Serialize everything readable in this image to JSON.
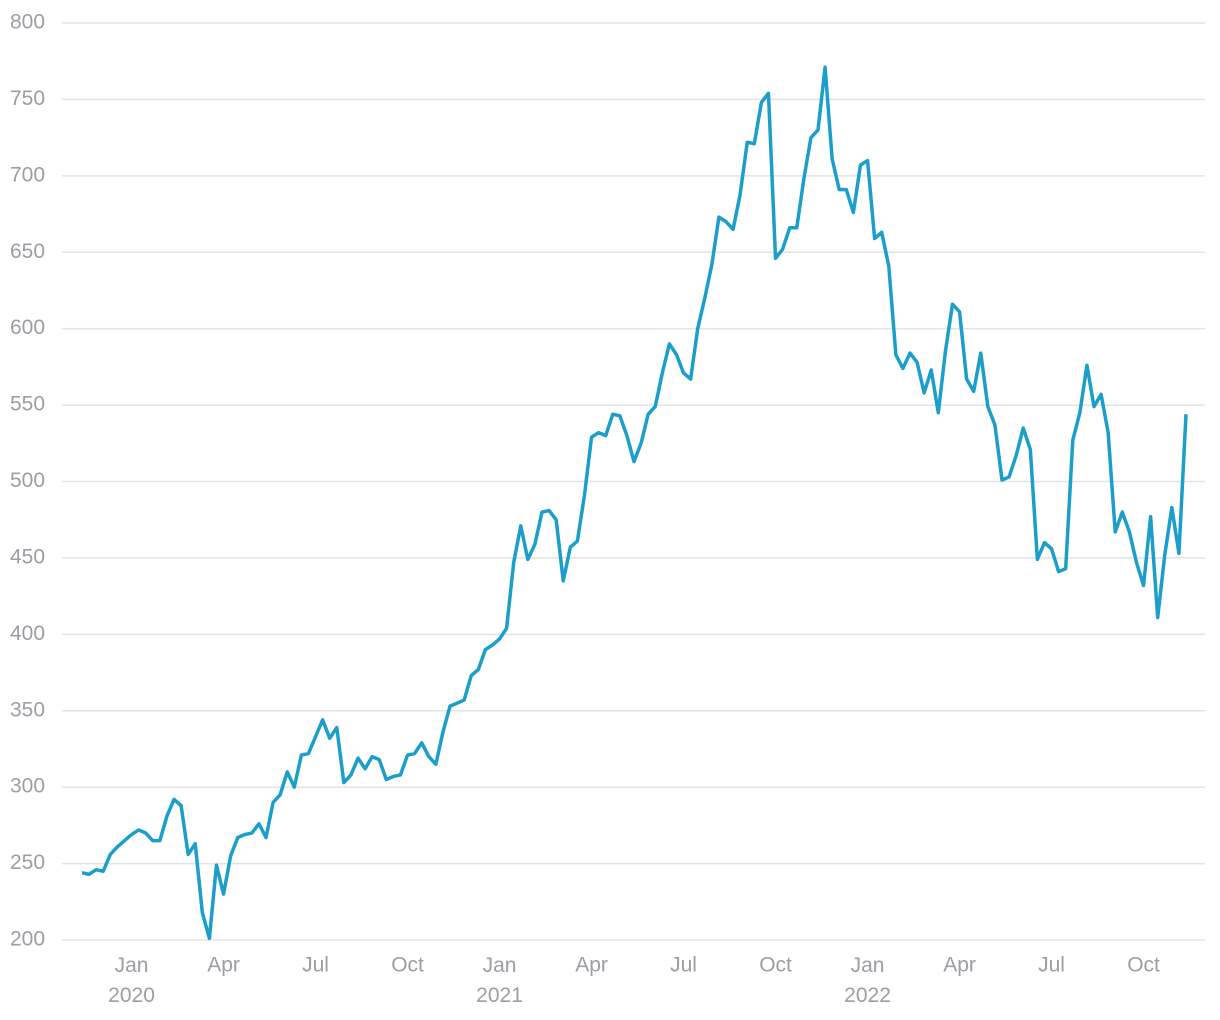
{
  "chart_data": {
    "type": "line",
    "categories": [
      null,
      null,
      null,
      null,
      null,
      null,
      null,
      "Jan 2020",
      null,
      null,
      null,
      null,
      null,
      null,
      null,
      null,
      null,
      null,
      null,
      null,
      "Apr",
      null,
      null,
      null,
      null,
      null,
      null,
      null,
      null,
      null,
      null,
      null,
      null,
      "Jul",
      null,
      null,
      null,
      null,
      null,
      null,
      null,
      null,
      null,
      null,
      null,
      null,
      "Oct",
      null,
      null,
      null,
      null,
      null,
      null,
      null,
      null,
      null,
      null,
      null,
      null,
      "Jan 2021",
      null,
      null,
      null,
      null,
      null,
      null,
      null,
      null,
      null,
      null,
      null,
      null,
      "Apr",
      null,
      null,
      null,
      null,
      null,
      null,
      null,
      null,
      null,
      null,
      null,
      null,
      "Jul",
      null,
      null,
      null,
      null,
      null,
      null,
      null,
      null,
      null,
      null,
      null,
      null,
      "Oct",
      null,
      null,
      null,
      null,
      null,
      null,
      null,
      null,
      null,
      null,
      null,
      null,
      "Jan 2022",
      null,
      null,
      null,
      null,
      null,
      null,
      null,
      null,
      null,
      null,
      null,
      null,
      "Apr",
      null,
      null,
      null,
      null,
      null,
      null,
      null,
      null,
      null,
      null,
      null,
      null,
      "Jul",
      null,
      null,
      null,
      null,
      null,
      null,
      null,
      null,
      null,
      null,
      null,
      null,
      "Oct",
      null,
      null,
      null,
      null,
      null,
      null
    ],
    "values": [
      244,
      243,
      246,
      245,
      256,
      261,
      265,
      269,
      272,
      270,
      265,
      265,
      281,
      292,
      288,
      256,
      263,
      218,
      201,
      249,
      230,
      255,
      267,
      269,
      270,
      276,
      267,
      290,
      295,
      310,
      300,
      321,
      322,
      333,
      344,
      332,
      339,
      303,
      308,
      319,
      312,
      320,
      318,
      305,
      307,
      308,
      321,
      322,
      329,
      320,
      315,
      336,
      353,
      355,
      357,
      373,
      377,
      390,
      393,
      397,
      404,
      447,
      471,
      449,
      459,
      480,
      481,
      475,
      435,
      457,
      461,
      491,
      529,
      532,
      530,
      544,
      543,
      530,
      513,
      525,
      544,
      549,
      571,
      590,
      583,
      571,
      567,
      600,
      620,
      642,
      673,
      670,
      665,
      688,
      722,
      721,
      748,
      754,
      646,
      652,
      666,
      666,
      698,
      725,
      730,
      771,
      711,
      691,
      691,
      676,
      707,
      710,
      659,
      663,
      641,
      583,
      574,
      584,
      578,
      558,
      573,
      545,
      585,
      616,
      611,
      567,
      559,
      584,
      549,
      537,
      501,
      503,
      517,
      535,
      521,
      449,
      460,
      456,
      441,
      443,
      527,
      545,
      576,
      549,
      557,
      532,
      467,
      480,
      467,
      447,
      432,
      477,
      411,
      452,
      483,
      453,
      544
    ],
    "color": "#1b9fca",
    "ylim": [
      200,
      800
    ],
    "yticks": [
      200,
      250,
      300,
      350,
      400,
      450,
      500,
      550,
      600,
      650,
      700,
      750,
      800
    ],
    "grid": true
  }
}
